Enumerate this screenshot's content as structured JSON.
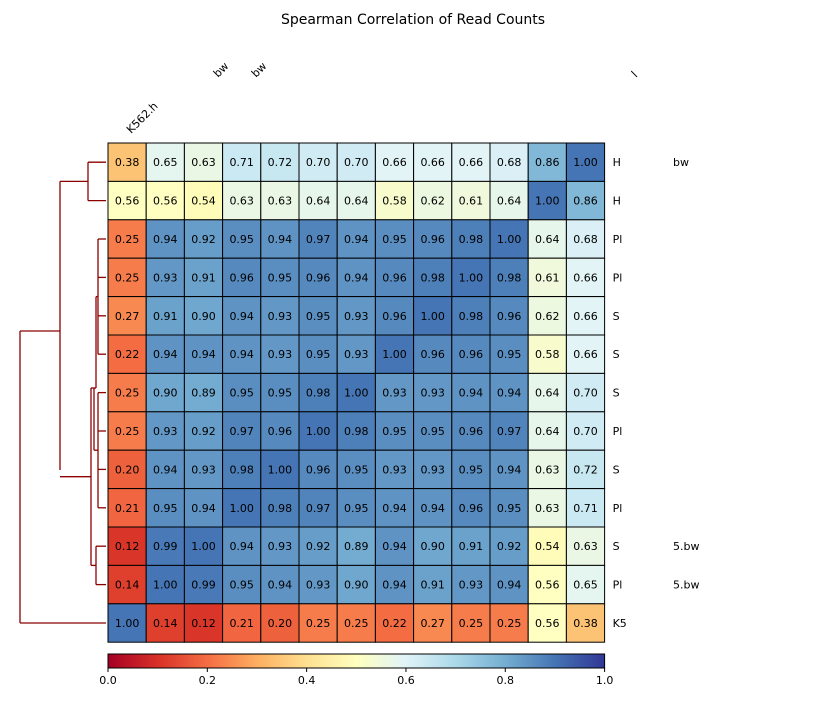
{
  "chart_data": {
    "type": "heatmap",
    "title": "Spearman Correlation of Read Counts",
    "row_labels": [
      "H                  bw",
      "H",
      "P",
      "P",
      "S",
      "S",
      "S",
      "P",
      "S",
      "P",
      "S                    5.bw",
      "P                    5.bw",
      "K"
    ],
    "row_labels_visible_text": [
      "H",
      "H",
      "Pl",
      "Pl",
      "S",
      "S",
      "S",
      "Pl",
      "S",
      "Pl",
      "S",
      "Pl",
      "K5"
    ],
    "row_label_suffixes": [
      "bw",
      "",
      "",
      "",
      "",
      "",
      "",
      "",
      "",
      "",
      "5.bw",
      "5.bw",
      ""
    ],
    "column_labels_visible": [
      "K562.h",
      "",
      "",
      "",
      "",
      "",
      "",
      "",
      "",
      "",
      "",
      "",
      ""
    ],
    "column_label_fragments": [
      {
        "col": 0,
        "text": "K562.h"
      },
      {
        "col": 2,
        "text": "bw"
      },
      {
        "col": 3,
        "text": "bw"
      },
      {
        "col": 12,
        "text": "l"
      }
    ],
    "matrix": [
      [
        0.38,
        0.65,
        0.63,
        0.71,
        0.72,
        0.7,
        0.7,
        0.66,
        0.66,
        0.66,
        0.68,
        0.86,
        1.0
      ],
      [
        0.56,
        0.56,
        0.54,
        0.63,
        0.63,
        0.64,
        0.64,
        0.58,
        0.62,
        0.61,
        0.64,
        1.0,
        0.86
      ],
      [
        0.25,
        0.94,
        0.92,
        0.95,
        0.94,
        0.97,
        0.94,
        0.95,
        0.96,
        0.98,
        1.0,
        0.64,
        0.68
      ],
      [
        0.25,
        0.93,
        0.91,
        0.96,
        0.95,
        0.96,
        0.94,
        0.96,
        0.98,
        1.0,
        0.98,
        0.61,
        0.66
      ],
      [
        0.27,
        0.91,
        0.9,
        0.94,
        0.93,
        0.95,
        0.93,
        0.96,
        1.0,
        0.98,
        0.96,
        0.62,
        0.66
      ],
      [
        0.22,
        0.94,
        0.94,
        0.94,
        0.93,
        0.95,
        0.93,
        1.0,
        0.96,
        0.96,
        0.95,
        0.58,
        0.66
      ],
      [
        0.25,
        0.9,
        0.89,
        0.95,
        0.95,
        0.98,
        1.0,
        0.93,
        0.93,
        0.94,
        0.94,
        0.64,
        0.7
      ],
      [
        0.25,
        0.93,
        0.92,
        0.97,
        0.96,
        1.0,
        0.98,
        0.95,
        0.95,
        0.96,
        0.97,
        0.64,
        0.7
      ],
      [
        0.2,
        0.94,
        0.93,
        0.98,
        1.0,
        0.96,
        0.95,
        0.93,
        0.93,
        0.95,
        0.94,
        0.63,
        0.72
      ],
      [
        0.21,
        0.95,
        0.94,
        1.0,
        0.98,
        0.97,
        0.95,
        0.94,
        0.94,
        0.96,
        0.95,
        0.63,
        0.71
      ],
      [
        0.12,
        0.99,
        1.0,
        0.94,
        0.93,
        0.92,
        0.89,
        0.94,
        0.9,
        0.91,
        0.92,
        0.54,
        0.63
      ],
      [
        0.14,
        1.0,
        0.99,
        0.95,
        0.94,
        0.93,
        0.9,
        0.94,
        0.91,
        0.93,
        0.94,
        0.56,
        0.65
      ],
      [
        1.0,
        0.14,
        0.12,
        0.21,
        0.2,
        0.25,
        0.25,
        0.22,
        0.27,
        0.25,
        0.25,
        0.56,
        0.38
      ]
    ],
    "colorbar": {
      "range": [
        0.0,
        1.0
      ],
      "ticks": [
        "0.0",
        "0.2",
        "0.4",
        "0.6",
        "0.8",
        "1.0"
      ],
      "colormap": "RdYlBu",
      "orientation": "horizontal"
    },
    "dendrogram": {
      "side": "left",
      "color": "#8b0000"
    },
    "value_format": "2 decimals"
  }
}
